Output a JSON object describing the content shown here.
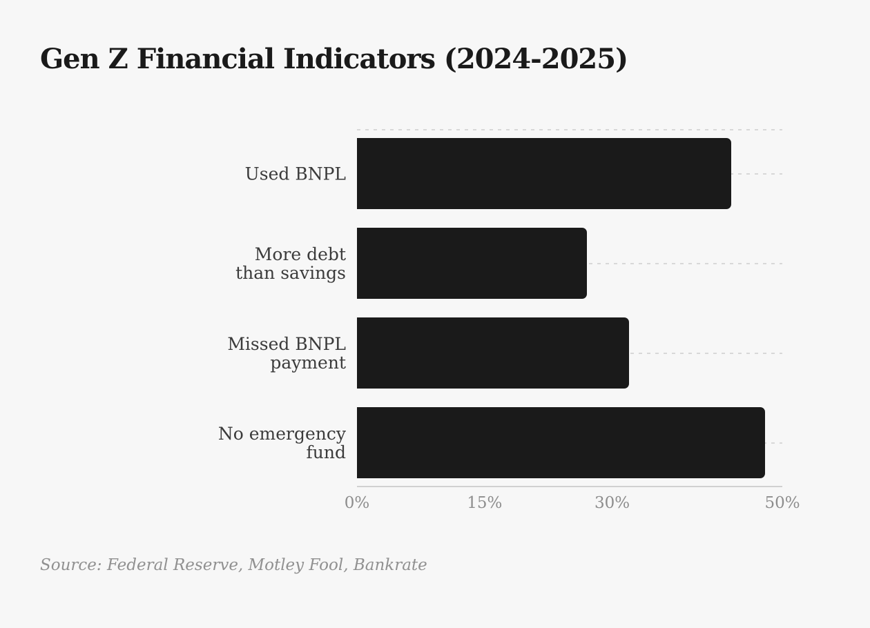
{
  "chart": {
    "title": "Gen Z Financial Indicators (2024-2025)",
    "source": "Source: Federal Reserve, Motley Fool, Bankrate"
  },
  "chart_data": {
    "type": "bar",
    "orientation": "horizontal",
    "title": "Gen Z Financial Indicators (2024-2025)",
    "categories": [
      "Used BNPL",
      "More debt\nthan savings",
      "Missed BNPL\npayment",
      "No emergency\nfund"
    ],
    "values": [
      44,
      27,
      32,
      48
    ],
    "unit": "%",
    "xlabel": "",
    "ylabel": "",
    "xlim": [
      0,
      50
    ],
    "xticks": [
      0,
      15,
      30,
      50
    ],
    "xtick_labels": [
      "0%",
      "15%",
      "30%",
      "50%"
    ],
    "grid": "dashed horizontal lines at plot top and at each bar center, behind bars",
    "legend": "none",
    "source": "Source: Federal Reserve, Motley Fool, Bankrate",
    "colors": {
      "background": "#f7f7f7",
      "bar": "#1a1a1a",
      "title": "#1a1a1a",
      "category_label": "#3b3b3b",
      "tick_label": "#8d8d8d",
      "source_text": "#909090",
      "gridline": "#d8d8d8",
      "axis_line": "#d0d0d0"
    }
  }
}
